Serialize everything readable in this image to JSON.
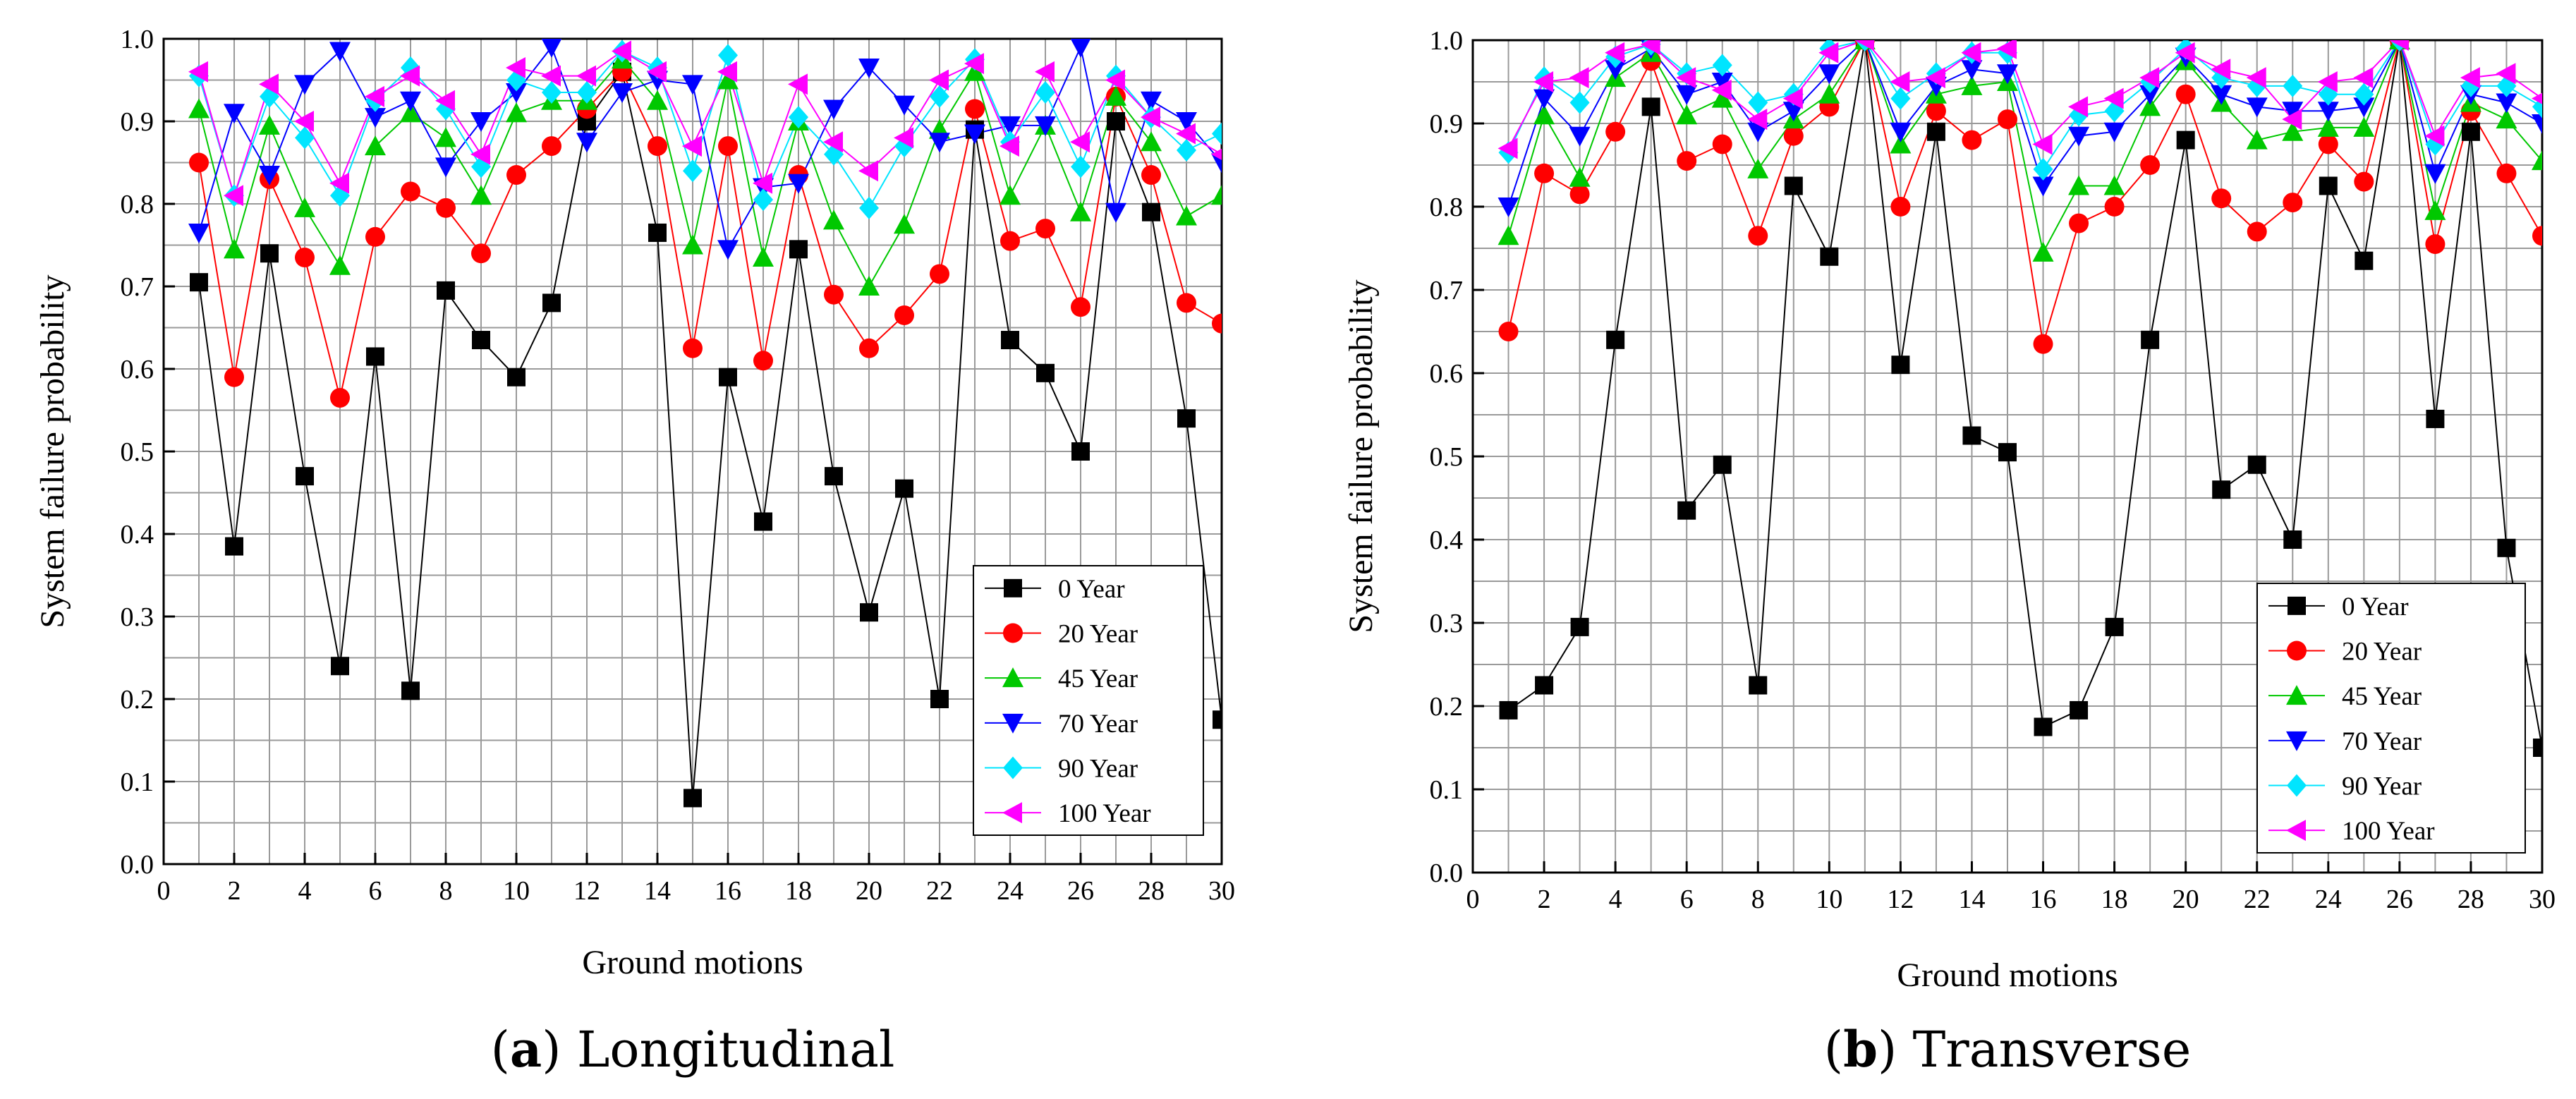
{
  "chart_data": [
    {
      "type": "line",
      "caption_letter": "a",
      "caption_text": ") Longitudinal",
      "caption_open": "(",
      "xlabel": "Ground motions",
      "ylabel": "System failure probability",
      "xlim": [
        0,
        30
      ],
      "ylim": [
        0,
        1.0
      ],
      "xticks": [
        "0",
        "2",
        "4",
        "6",
        "8",
        "10",
        "12",
        "14",
        "16",
        "18",
        "20",
        "22",
        "24",
        "26",
        "28",
        "30"
      ],
      "yticks": [
        "0.0",
        "0.1",
        "0.2",
        "0.3",
        "0.4",
        "0.5",
        "0.6",
        "0.7",
        "0.8",
        "0.9",
        "1.0"
      ],
      "grid": true,
      "legend_position": "bottom-right",
      "x": [
        1,
        2,
        3,
        4,
        5,
        6,
        7,
        8,
        9,
        10,
        11,
        12,
        13,
        14,
        15,
        16,
        17,
        18,
        19,
        20,
        21,
        22,
        23,
        24,
        25,
        26,
        27,
        28,
        29,
        30
      ],
      "series": [
        {
          "name": "0 Year",
          "color": "#000000",
          "marker": "square",
          "values": [
            0.705,
            0.385,
            0.74,
            0.47,
            0.24,
            0.615,
            0.21,
            0.695,
            0.635,
            0.59,
            0.68,
            0.9,
            0.96,
            0.765,
            0.08,
            0.59,
            0.415,
            0.745,
            0.47,
            0.305,
            0.455,
            0.2,
            0.89,
            0.635,
            0.595,
            0.5,
            0.9,
            0.79,
            0.54,
            0.175
          ]
        },
        {
          "name": "20 Year",
          "color": "#ff0000",
          "marker": "circle",
          "values": [
            0.85,
            0.59,
            0.83,
            0.735,
            0.565,
            0.76,
            0.815,
            0.795,
            0.74,
            0.835,
            0.87,
            0.915,
            0.96,
            0.87,
            0.625,
            0.87,
            0.61,
            0.835,
            0.69,
            0.625,
            0.665,
            0.715,
            0.915,
            0.755,
            0.77,
            0.675,
            0.93,
            0.835,
            0.68,
            0.655
          ]
        },
        {
          "name": "45 Year",
          "color": "#00c800",
          "marker": "triangle-up",
          "values": [
            0.915,
            0.745,
            0.895,
            0.795,
            0.725,
            0.87,
            0.91,
            0.88,
            0.81,
            0.91,
            0.925,
            0.925,
            0.975,
            0.925,
            0.75,
            0.95,
            0.735,
            0.9,
            0.78,
            0.7,
            0.775,
            0.89,
            0.96,
            0.81,
            0.895,
            0.79,
            0.93,
            0.875,
            0.785,
            0.81
          ]
        },
        {
          "name": "70 Year",
          "color": "#0000ff",
          "marker": "triangle-down",
          "values": [
            0.765,
            0.91,
            0.835,
            0.945,
            0.985,
            0.905,
            0.925,
            0.845,
            0.9,
            0.935,
            0.99,
            0.875,
            0.935,
            0.95,
            0.945,
            0.745,
            0.82,
            0.825,
            0.915,
            0.965,
            0.92,
            0.875,
            0.885,
            0.895,
            0.895,
            0.99,
            0.79,
            0.925,
            0.9,
            0.85
          ]
        },
        {
          "name": "90 Year",
          "color": "#00e5ff",
          "marker": "diamond",
          "values": [
            0.955,
            0.81,
            0.93,
            0.88,
            0.81,
            0.925,
            0.965,
            0.915,
            0.845,
            0.95,
            0.935,
            0.935,
            0.985,
            0.965,
            0.84,
            0.98,
            0.805,
            0.905,
            0.86,
            0.795,
            0.87,
            0.93,
            0.975,
            0.875,
            0.935,
            0.845,
            0.955,
            0.905,
            0.865,
            0.885
          ]
        },
        {
          "name": "100 Year",
          "color": "#ff00ff",
          "marker": "triangle-left",
          "values": [
            0.96,
            0.81,
            0.945,
            0.9,
            0.825,
            0.93,
            0.955,
            0.925,
            0.86,
            0.965,
            0.955,
            0.955,
            0.985,
            0.96,
            0.87,
            0.96,
            0.825,
            0.945,
            0.875,
            0.84,
            0.88,
            0.95,
            0.97,
            0.87,
            0.96,
            0.875,
            0.95,
            0.905,
            0.885,
            0.86
          ]
        }
      ]
    },
    {
      "type": "line",
      "caption_letter": "b",
      "caption_text": ") Transverse",
      "caption_open": "(",
      "xlabel": "Ground motions",
      "ylabel": "System failure probability",
      "xlim": [
        0,
        30
      ],
      "ylim": [
        0,
        1.0
      ],
      "xticks": [
        "0",
        "2",
        "4",
        "6",
        "8",
        "10",
        "12",
        "14",
        "16",
        "18",
        "20",
        "22",
        "24",
        "26",
        "28",
        "30"
      ],
      "yticks": [
        "0.0",
        "0.1",
        "0.2",
        "0.3",
        "0.4",
        "0.5",
        "0.6",
        "0.7",
        "0.8",
        "0.9",
        "1.0"
      ],
      "grid": true,
      "legend_position": "bottom-right",
      "x": [
        1,
        2,
        3,
        4,
        5,
        6,
        7,
        8,
        9,
        10,
        11,
        12,
        13,
        14,
        15,
        16,
        17,
        18,
        19,
        20,
        21,
        22,
        23,
        24,
        25,
        26,
        27,
        28,
        29,
        30
      ],
      "series": [
        {
          "name": "0 Year",
          "color": "#000000",
          "marker": "square",
          "values": [
            0.195,
            0.225,
            0.295,
            0.64,
            0.92,
            0.435,
            0.49,
            0.225,
            0.825,
            0.74,
            1.0,
            0.61,
            0.89,
            0.525,
            0.505,
            0.175,
            0.195,
            0.295,
            0.64,
            0.88,
            0.46,
            0.49,
            0.4,
            0.825,
            0.735,
            1.0,
            0.545,
            0.89,
            0.39,
            0.15
          ]
        },
        {
          "name": "20 Year",
          "color": "#ff0000",
          "marker": "circle",
          "values": [
            0.65,
            0.84,
            0.815,
            0.89,
            0.975,
            0.855,
            0.875,
            0.765,
            0.885,
            0.92,
            1.0,
            0.8,
            0.915,
            0.88,
            0.905,
            0.635,
            0.78,
            0.8,
            0.85,
            0.935,
            0.81,
            0.77,
            0.805,
            0.875,
            0.83,
            1.0,
            0.755,
            0.915,
            0.84,
            0.765
          ]
        },
        {
          "name": "45 Year",
          "color": "#00c800",
          "marker": "triangle-up",
          "values": [
            0.765,
            0.91,
            0.835,
            0.955,
            0.985,
            0.91,
            0.93,
            0.845,
            0.905,
            0.935,
            1.0,
            0.875,
            0.935,
            0.945,
            0.95,
            0.745,
            0.825,
            0.825,
            0.92,
            0.975,
            0.925,
            0.88,
            0.89,
            0.895,
            0.895,
            1.0,
            0.795,
            0.925,
            0.905,
            0.855
          ]
        },
        {
          "name": "70 Year",
          "color": "#0000ff",
          "marker": "triangle-down",
          "values": [
            0.8,
            0.93,
            0.885,
            0.965,
            0.99,
            0.935,
            0.95,
            0.89,
            0.915,
            0.96,
            1.0,
            0.89,
            0.945,
            0.965,
            0.96,
            0.825,
            0.885,
            0.89,
            0.935,
            0.98,
            0.935,
            0.92,
            0.915,
            0.915,
            0.92,
            1.0,
            0.84,
            0.935,
            0.925,
            0.9
          ]
        },
        {
          "name": "90 Year",
          "color": "#00e5ff",
          "marker": "diamond",
          "values": [
            0.865,
            0.955,
            0.925,
            0.98,
            0.995,
            0.96,
            0.97,
            0.925,
            0.935,
            0.99,
            1.0,
            0.93,
            0.96,
            0.985,
            0.985,
            0.845,
            0.91,
            0.915,
            0.95,
            0.99,
            0.955,
            0.945,
            0.945,
            0.935,
            0.935,
            1.0,
            0.875,
            0.945,
            0.945,
            0.92
          ]
        },
        {
          "name": "100 Year",
          "color": "#ff00ff",
          "marker": "triangle-left",
          "values": [
            0.87,
            0.95,
            0.955,
            0.985,
            0.995,
            0.955,
            0.94,
            0.905,
            0.93,
            0.985,
            1.0,
            0.95,
            0.955,
            0.985,
            0.99,
            0.875,
            0.92,
            0.93,
            0.955,
            0.985,
            0.965,
            0.955,
            0.905,
            0.95,
            0.955,
            1.0,
            0.885,
            0.955,
            0.96,
            0.93
          ]
        }
      ]
    }
  ]
}
